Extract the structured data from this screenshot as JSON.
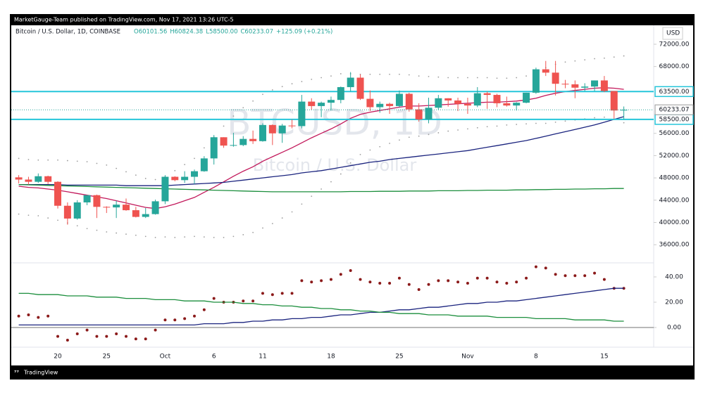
{
  "chart_data": [
    {
      "type": "candlestick",
      "publisher_note": "MarketGauge-Team published on TradingView.com, Nov 17, 2021 13:26 UTC-5",
      "title": "Bitcoin / U.S. Dollar, 1D, COINBASE",
      "ohlc_labels": [
        "O60101.56",
        "H60824.38",
        "L58500.00",
        "C60233.07",
        "+125.09 (+0.21%)"
      ],
      "watermark": "BTCUSD, 1D",
      "watermark_subtitle": "Bitcoin / U.S. Dollar",
      "currency": "USD",
      "footer": "TradingView",
      "up_color": "#26a69a",
      "down_color": "#ef5350",
      "categories": [
        null,
        null,
        null,
        null,
        "20",
        null,
        null,
        null,
        null,
        "25",
        null,
        null,
        null,
        null,
        null,
        "Oct",
        null,
        null,
        null,
        null,
        "6",
        null,
        null,
        null,
        null,
        "11",
        null,
        null,
        null,
        null,
        null,
        null,
        "18",
        null,
        null,
        null,
        null,
        null,
        null,
        "25",
        null,
        null,
        null,
        null,
        null,
        null,
        "Nov",
        null,
        null,
        null,
        null,
        null,
        null,
        "8",
        null,
        null,
        null,
        null,
        null,
        null,
        "15",
        null,
        null
      ],
      "open": [
        48100,
        47700,
        47300,
        48300,
        47300,
        43000,
        40700,
        43600,
        44900,
        42800,
        42700,
        43200,
        42200,
        41000,
        41500,
        43800,
        48200,
        47600,
        48200,
        49200,
        51500,
        55300,
        53800,
        53900,
        55000,
        54600,
        57500,
        56000,
        57400,
        57300,
        61700,
        60900,
        61500,
        62000,
        64300,
        66000,
        62200,
        60700,
        61300,
        60900,
        63100,
        60300,
        58500,
        60600,
        62300,
        61900,
        61300,
        61000,
        63200,
        62900,
        61400,
        61000,
        61500,
        63300,
        67500,
        66900,
        64900,
        64800,
        64200,
        64400,
        65500,
        63600,
        60101.56
      ],
      "high": [
        48500,
        48200,
        48800,
        48400,
        47400,
        43600,
        44000,
        44900,
        45000,
        42900,
        43900,
        44300,
        42800,
        42600,
        44100,
        48500,
        48300,
        49200,
        49500,
        51900,
        55700,
        55300,
        56100,
        55500,
        56500,
        57800,
        57600,
        57700,
        58500,
        62900,
        62300,
        61700,
        62600,
        64400,
        67000,
        66600,
        63700,
        61700,
        61500,
        63700,
        63300,
        61400,
        62400,
        62900,
        62300,
        62400,
        62400,
        64300,
        63500,
        63100,
        62600,
        61600,
        63300,
        67800,
        69000,
        69000,
        65600,
        65500,
        65000,
        65500,
        66300,
        63600,
        60824.38
      ],
      "low": [
        47000,
        46800,
        47100,
        46900,
        42500,
        39600,
        40500,
        43100,
        40800,
        41700,
        40800,
        42100,
        40900,
        40800,
        41400,
        43300,
        47400,
        47100,
        46900,
        49100,
        50400,
        53400,
        53600,
        53700,
        54100,
        54500,
        53900,
        54300,
        56900,
        56900,
        60200,
        58900,
        60100,
        61400,
        63500,
        62000,
        60000,
        59700,
        59500,
        60700,
        59900,
        58100,
        57800,
        60200,
        60800,
        60000,
        59500,
        60700,
        60400,
        60700,
        60800,
        60100,
        61400,
        63100,
        66300,
        62800,
        64100,
        62300,
        63600,
        63600,
        63400,
        58600,
        58500
      ],
      "close": [
        47700,
        47300,
        48300,
        47300,
        43000,
        40700,
        43600,
        44900,
        42800,
        42700,
        43200,
        42200,
        41000,
        41500,
        43800,
        48200,
        47600,
        48200,
        49200,
        51500,
        55300,
        53800,
        53900,
        55000,
        54600,
        57500,
        56000,
        57400,
        57300,
        61700,
        60900,
        61500,
        62000,
        64300,
        66000,
        62200,
        60700,
        61300,
        60900,
        63100,
        60300,
        58500,
        60600,
        62300,
        61900,
        61300,
        61000,
        63200,
        62900,
        61400,
        61000,
        61500,
        63300,
        67500,
        66900,
        64900,
        64800,
        64200,
        64400,
        65500,
        63600,
        60100,
        60233.07
      ],
      "series": [
        {
          "style": "line",
          "color": "#c2185b",
          "values": [
            46500,
            46300,
            46200,
            46000,
            45800,
            45500,
            45200,
            44900,
            44600,
            44300,
            43900,
            43500,
            43100,
            42700,
            42500,
            42800,
            43300,
            43900,
            44500,
            45400,
            46300,
            47300,
            48300,
            49200,
            50000,
            51000,
            51800,
            52600,
            53400,
            54300,
            55200,
            56000,
            56800,
            57700,
            58700,
            59400,
            59800,
            60100,
            60400,
            60700,
            60900,
            60900,
            61000,
            61100,
            61200,
            61300,
            61400,
            61500,
            61600,
            61600,
            61700,
            61800,
            62000,
            62300,
            62800,
            63200,
            63500,
            63700,
            63900,
            64100,
            64200,
            64100,
            63900
          ]
        },
        {
          "style": "line",
          "color": "#1a237e",
          "values": [
            46800,
            46800,
            46800,
            46800,
            46800,
            46700,
            46700,
            46700,
            46700,
            46700,
            46700,
            46600,
            46600,
            46600,
            46600,
            46600,
            46700,
            46800,
            46900,
            47000,
            47100,
            47200,
            47400,
            47600,
            47800,
            48000,
            48200,
            48400,
            48600,
            48900,
            49100,
            49300,
            49600,
            49900,
            50200,
            50500,
            50800,
            51000,
            51300,
            51500,
            51700,
            51900,
            52100,
            52300,
            52500,
            52700,
            52900,
            53200,
            53500,
            53800,
            54100,
            54400,
            54700,
            55100,
            55500,
            55900,
            56300,
            56700,
            57100,
            57500,
            58000,
            58500,
            59000
          ]
        },
        {
          "style": "line",
          "color": "#1b8e3c",
          "values": [
            46800,
            46750,
            46700,
            46650,
            46600,
            46550,
            46500,
            46450,
            46400,
            46350,
            46300,
            46250,
            46200,
            46150,
            46100,
            46050,
            46000,
            45950,
            45900,
            45850,
            45800,
            45750,
            45700,
            45650,
            45600,
            45550,
            45500,
            45500,
            45500,
            45500,
            45500,
            45500,
            45500,
            45500,
            45550,
            45550,
            45550,
            45600,
            45600,
            45600,
            45650,
            45650,
            45650,
            45700,
            45700,
            45700,
            45750,
            45750,
            45800,
            45800,
            45800,
            45850,
            45850,
            45900,
            45900,
            45950,
            45950,
            46000,
            46000,
            46050,
            46050,
            46100,
            46100
          ]
        },
        {
          "style": "dots",
          "color": "#9e9e9e",
          "values": [
            51500,
            51300,
            51200,
            51200,
            51200,
            51100,
            51000,
            50900,
            50600,
            50300,
            49700,
            49100,
            48500,
            47900,
            47700,
            48200,
            49300,
            50400,
            51500,
            53400,
            55300,
            57300,
            59100,
            60600,
            61800,
            63000,
            63800,
            64400,
            64900,
            65300,
            65700,
            66000,
            66300,
            66700,
            66700,
            66600,
            66600,
            66600,
            66600,
            66600,
            66500,
            66300,
            66200,
            66100,
            66000,
            66000,
            66000,
            66000,
            66000,
            65900,
            65900,
            66000,
            66300,
            66800,
            67800,
            68400,
            68800,
            69000,
            69200,
            69400,
            69500,
            69700,
            69900
          ]
        },
        {
          "style": "dots",
          "color": "#9e9e9e",
          "values": [
            41500,
            41300,
            41200,
            40800,
            40400,
            39900,
            39400,
            38900,
            38600,
            38300,
            38100,
            37900,
            37700,
            37500,
            37300,
            37400,
            37300,
            37400,
            37500,
            37400,
            37300,
            37300,
            37500,
            37800,
            38200,
            39000,
            39800,
            40800,
            41900,
            43300,
            44700,
            46000,
            47300,
            48700,
            50700,
            52200,
            53000,
            53600,
            54200,
            54800,
            55300,
            55500,
            55800,
            56100,
            56400,
            56600,
            56800,
            57000,
            57200,
            57300,
            57500,
            57600,
            57700,
            57800,
            57800,
            58000,
            58200,
            58400,
            58600,
            58800,
            58900,
            58500,
            57900
          ]
        }
      ],
      "hlines": [
        {
          "value": 63500,
          "label": "63500.00",
          "color": "#26c6da"
        },
        {
          "value": 58500,
          "label": "58500.00",
          "color": "#26c6da"
        }
      ],
      "last_price": {
        "value": 60233.07,
        "label": "60233.07"
      },
      "ylim": [
        33000,
        75400
      ],
      "yticks": [
        {
          "value": 72000,
          "label": "72000.00"
        },
        {
          "value": 68000,
          "label": "68000.00"
        },
        {
          "value": 56000,
          "label": "56000.00"
        },
        {
          "value": 52000,
          "label": "52000.00"
        },
        {
          "value": 48000,
          "label": "48000.00"
        },
        {
          "value": 44000,
          "label": "44000.00"
        },
        {
          "value": 40000,
          "label": "40000.00"
        },
        {
          "value": 36000,
          "label": "36000.00"
        }
      ],
      "grid": false
    },
    {
      "type": "indicator",
      "series": [
        {
          "style": "dots",
          "color": "#8b1a1a",
          "values": [
            9,
            10,
            8,
            9,
            -7,
            -10,
            -5,
            -2,
            -7,
            -7,
            -5,
            -7,
            -9,
            -9,
            -2,
            6,
            6,
            7,
            9,
            14,
            23,
            20,
            20,
            21,
            21,
            27,
            26,
            27,
            27,
            37,
            36,
            37,
            38,
            42,
            45,
            38,
            36,
            35,
            35,
            39,
            34,
            30,
            34,
            37,
            37,
            36,
            35,
            39,
            39,
            36,
            35,
            36,
            39,
            48,
            47,
            42,
            41,
            41,
            41,
            43,
            38,
            31,
            31
          ]
        },
        {
          "style": "line",
          "color": "#1a237e",
          "values": [
            2,
            2,
            2,
            2,
            2,
            2,
            2,
            2,
            2,
            2,
            2,
            2,
            2,
            2,
            2,
            2,
            2,
            2,
            2,
            3,
            3,
            3,
            4,
            4,
            5,
            5,
            6,
            6,
            7,
            7,
            8,
            8,
            9,
            10,
            10,
            11,
            12,
            12,
            13,
            14,
            14,
            15,
            16,
            16,
            17,
            18,
            19,
            19,
            20,
            20,
            21,
            21,
            22,
            23,
            24,
            25,
            26,
            27,
            28,
            29,
            30,
            31,
            31
          ]
        },
        {
          "style": "line",
          "color": "#1b8e3c",
          "values": [
            27,
            27,
            26,
            26,
            26,
            25,
            25,
            25,
            24,
            24,
            24,
            23,
            23,
            23,
            22,
            22,
            22,
            21,
            21,
            21,
            20,
            20,
            20,
            19,
            19,
            18,
            18,
            17,
            17,
            16,
            16,
            15,
            15,
            14,
            14,
            13,
            13,
            12,
            12,
            11,
            11,
            11,
            10,
            10,
            10,
            9,
            9,
            9,
            9,
            8,
            8,
            8,
            8,
            7,
            7,
            7,
            7,
            6,
            6,
            6,
            6,
            5,
            5
          ]
        }
      ],
      "ylim": [
        -14,
        50
      ],
      "yticks": [
        {
          "value": 40,
          "label": "40.00"
        },
        {
          "value": 20,
          "label": "20.00"
        },
        {
          "value": 0,
          "label": "0.00"
        }
      ],
      "grid": false
    }
  ]
}
